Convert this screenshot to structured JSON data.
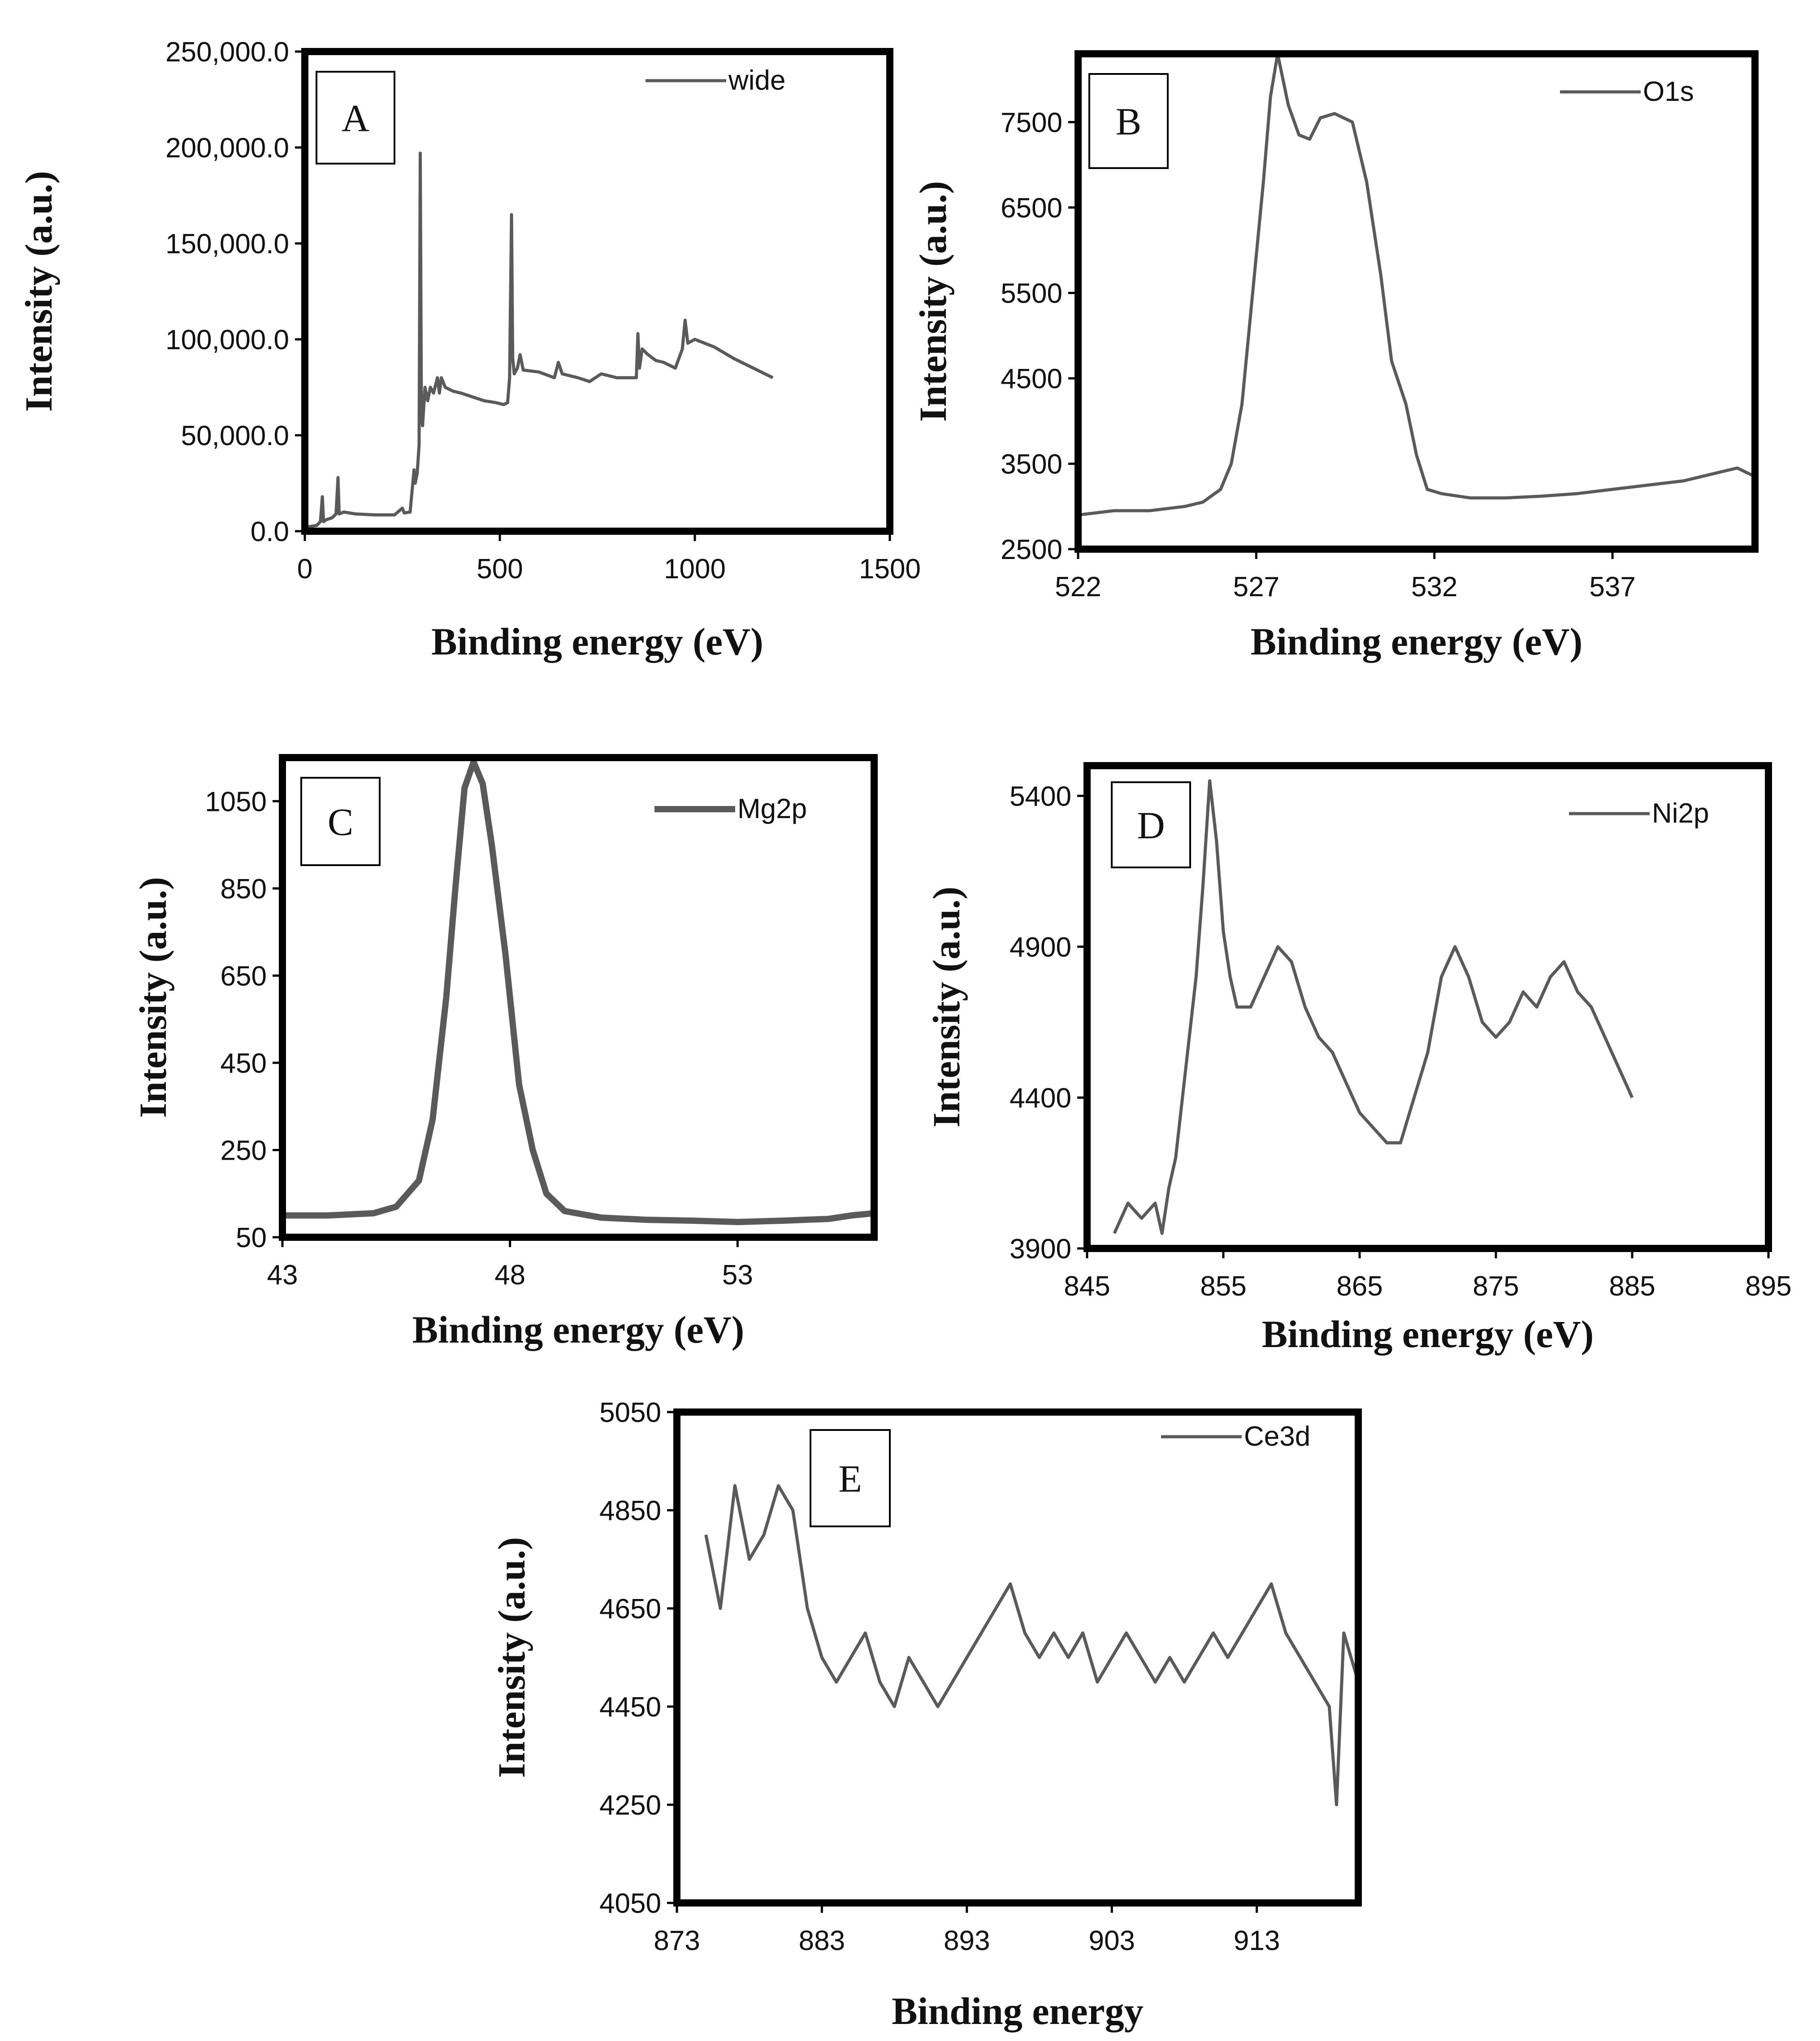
{
  "charts": [
    {
      "type": "line",
      "panel_label": "A",
      "legend": "wide",
      "xlabel": "Binding energy (eV)",
      "ylabel": "Intensity (a.u.)",
      "xlim": [
        0,
        1500
      ],
      "ylim": [
        0,
        250000
      ],
      "x_ticks": [
        "0",
        "500",
        "1000",
        "1500"
      ],
      "y_ticks": [
        "0.0",
        "50,000.0",
        "100,000.0",
        "150,000.0",
        "200,000.0",
        "250,000.0"
      ],
      "series": [
        {
          "name": "wide",
          "points": [
            [
              0,
              2000
            ],
            [
              15,
              2500
            ],
            [
              30,
              3000
            ],
            [
              40,
              5000
            ],
            [
              45,
              18000
            ],
            [
              48,
              5000
            ],
            [
              55,
              6000
            ],
            [
              70,
              7000
            ],
            [
              80,
              9000
            ],
            [
              85,
              28000
            ],
            [
              88,
              9000
            ],
            [
              100,
              10000
            ],
            [
              130,
              9000
            ],
            [
              180,
              8500
            ],
            [
              230,
              8500
            ],
            [
              250,
              12000
            ],
            [
              255,
              9500
            ],
            [
              270,
              10000
            ],
            [
              280,
              32000
            ],
            [
              283,
              25000
            ],
            [
              288,
              30000
            ],
            [
              293,
              45000
            ],
            [
              296,
              197000
            ],
            [
              299,
              60000
            ],
            [
              302,
              55000
            ],
            [
              308,
              75000
            ],
            [
              315,
              68000
            ],
            [
              322,
              75000
            ],
            [
              330,
              72000
            ],
            [
              340,
              80000
            ],
            [
              345,
              72000
            ],
            [
              350,
              80000
            ],
            [
              360,
              75000
            ],
            [
              380,
              73000
            ],
            [
              400,
              72000
            ],
            [
              430,
              70000
            ],
            [
              460,
              68000
            ],
            [
              490,
              67000
            ],
            [
              510,
              66000
            ],
            [
              520,
              67000
            ],
            [
              525,
              80000
            ],
            [
              530,
              165000
            ],
            [
              533,
              90000
            ],
            [
              537,
              82000
            ],
            [
              545,
              85000
            ],
            [
              552,
              92000
            ],
            [
              560,
              84000
            ],
            [
              600,
              83000
            ],
            [
              640,
              80000
            ],
            [
              650,
              88000
            ],
            [
              660,
              82000
            ],
            [
              700,
              80000
            ],
            [
              730,
              78000
            ],
            [
              760,
              82000
            ],
            [
              800,
              80000
            ],
            [
              840,
              80000
            ],
            [
              850,
              80000
            ],
            [
              854,
              103000
            ],
            [
              858,
              85000
            ],
            [
              865,
              95000
            ],
            [
              880,
              92000
            ],
            [
              900,
              89000
            ],
            [
              920,
              88000
            ],
            [
              950,
              85000
            ],
            [
              968,
              95000
            ],
            [
              975,
              110000
            ],
            [
              982,
              98000
            ],
            [
              1000,
              100000
            ],
            [
              1050,
              96000
            ],
            [
              1100,
              90000
            ],
            [
              1150,
              85000
            ],
            [
              1200,
              80000
            ]
          ]
        }
      ]
    },
    {
      "type": "line",
      "panel_label": "B",
      "legend": "O1s",
      "xlabel": "Binding energy (eV)",
      "ylabel": "Intensity (a.u.)",
      "xlim": [
        522,
        541
      ],
      "ylim": [
        2500,
        8300
      ],
      "x_ticks": [
        "522",
        "527",
        "532",
        "537"
      ],
      "y_ticks": [
        "2500",
        "3500",
        "4500",
        "5500",
        "6500",
        "7500"
      ],
      "series": [
        {
          "name": "O1s",
          "points": [
            [
              522,
              2900
            ],
            [
              523,
              2950
            ],
            [
              524,
              2950
            ],
            [
              525,
              3000
            ],
            [
              525.5,
              3050
            ],
            [
              526,
              3200
            ],
            [
              526.3,
              3500
            ],
            [
              526.6,
              4200
            ],
            [
              526.9,
              5500
            ],
            [
              527.2,
              6800
            ],
            [
              527.4,
              7800
            ],
            [
              527.6,
              8300
            ],
            [
              527.9,
              7700
            ],
            [
              528.2,
              7350
            ],
            [
              528.5,
              7300
            ],
            [
              528.8,
              7550
            ],
            [
              529.2,
              7600
            ],
            [
              529.7,
              7500
            ],
            [
              530.1,
              6800
            ],
            [
              530.5,
              5700
            ],
            [
              530.8,
              4700
            ],
            [
              531.2,
              4200
            ],
            [
              531.5,
              3600
            ],
            [
              531.8,
              3200
            ],
            [
              532.2,
              3150
            ],
            [
              533,
              3100
            ],
            [
              534,
              3100
            ],
            [
              535,
              3120
            ],
            [
              536,
              3150
            ],
            [
              537,
              3200
            ],
            [
              538,
              3250
            ],
            [
              539,
              3300
            ],
            [
              540,
              3400
            ],
            [
              540.5,
              3450
            ],
            [
              541,
              3350
            ]
          ]
        }
      ]
    },
    {
      "type": "line",
      "panel_label": "C",
      "legend": "Mg2p",
      "xlabel": "Binding energy (eV)",
      "ylabel": "Intensity (a.u.)",
      "xlim": [
        43,
        56
      ],
      "ylim": [
        50,
        1150
      ],
      "x_ticks": [
        "43",
        "48",
        "53"
      ],
      "y_ticks": [
        "50",
        "250",
        "450",
        "650",
        "850",
        "1050"
      ],
      "series": [
        {
          "name": "Mg2p",
          "points": [
            [
              43,
              100
            ],
            [
              44,
              100
            ],
            [
              45,
              105
            ],
            [
              45.5,
              120
            ],
            [
              46,
              180
            ],
            [
              46.3,
              320
            ],
            [
              46.6,
              600
            ],
            [
              46.8,
              850
            ],
            [
              47,
              1080
            ],
            [
              47.2,
              1140
            ],
            [
              47.4,
              1090
            ],
            [
              47.6,
              950
            ],
            [
              47.9,
              700
            ],
            [
              48.2,
              400
            ],
            [
              48.5,
              250
            ],
            [
              48.8,
              150
            ],
            [
              49.2,
              110
            ],
            [
              50,
              95
            ],
            [
              51,
              90
            ],
            [
              52,
              88
            ],
            [
              53,
              85
            ],
            [
              54,
              88
            ],
            [
              55,
              92
            ],
            [
              55.5,
              100
            ],
            [
              56,
              105
            ]
          ]
        }
      ]
    },
    {
      "type": "line",
      "panel_label": "D",
      "legend": "Ni2p",
      "xlabel": "Binding energy (eV)",
      "ylabel": "Intensity (a.u.)",
      "xlim": [
        845,
        895
      ],
      "ylim": [
        3900,
        5500
      ],
      "x_ticks": [
        "845",
        "855",
        "865",
        "875",
        "885",
        "895"
      ],
      "y_ticks": [
        "3900",
        "4400",
        "4900",
        "5400"
      ],
      "series": [
        {
          "name": "Ni2p",
          "points": [
            [
              847,
              3950
            ],
            [
              848,
              4050
            ],
            [
              849,
              4000
            ],
            [
              850,
              4050
            ],
            [
              850.5,
              3950
            ],
            [
              851,
              4100
            ],
            [
              851.5,
              4200
            ],
            [
              852,
              4400
            ],
            [
              852.5,
              4600
            ],
            [
              853,
              4800
            ],
            [
              853.5,
              5100
            ],
            [
              854,
              5450
            ],
            [
              854.5,
              5250
            ],
            [
              855,
              4950
            ],
            [
              855.5,
              4800
            ],
            [
              856,
              4700
            ],
            [
              857,
              4700
            ],
            [
              858,
              4800
            ],
            [
              859,
              4900
            ],
            [
              860,
              4850
            ],
            [
              861,
              4700
            ],
            [
              862,
              4600
            ],
            [
              863,
              4550
            ],
            [
              864,
              4450
            ],
            [
              865,
              4350
            ],
            [
              866,
              4300
            ],
            [
              867,
              4250
            ],
            [
              868,
              4250
            ],
            [
              869,
              4400
            ],
            [
              870,
              4550
            ],
            [
              871,
              4800
            ],
            [
              872,
              4900
            ],
            [
              873,
              4800
            ],
            [
              874,
              4650
            ],
            [
              875,
              4600
            ],
            [
              876,
              4650
            ],
            [
              877,
              4750
            ],
            [
              878,
              4700
            ],
            [
              879,
              4800
            ],
            [
              880,
              4850
            ],
            [
              881,
              4750
            ],
            [
              882,
              4700
            ],
            [
              883,
              4600
            ],
            [
              884,
              4500
            ],
            [
              885,
              4400
            ]
          ]
        }
      ]
    },
    {
      "type": "line",
      "panel_label": "E",
      "legend": "Ce3d",
      "xlabel": "Binding      energy",
      "ylabel": "Intensity (a.u.)",
      "xlim": [
        873,
        920
      ],
      "ylim": [
        4050,
        5050
      ],
      "x_ticks": [
        "873",
        "883",
        "893",
        "903",
        "913"
      ],
      "y_ticks": [
        "4050",
        "4250",
        "4450",
        "4650",
        "4850",
        "5050"
      ],
      "series": [
        {
          "name": "Ce3d",
          "points": [
            [
              875,
              4800
            ],
            [
              876,
              4650
            ],
            [
              877,
              4900
            ],
            [
              878,
              4750
            ],
            [
              879,
              4800
            ],
            [
              880,
              4900
            ],
            [
              881,
              4850
            ],
            [
              882,
              4650
            ],
            [
              883,
              4550
            ],
            [
              884,
              4500
            ],
            [
              885,
              4550
            ],
            [
              886,
              4600
            ],
            [
              887,
              4500
            ],
            [
              888,
              4450
            ],
            [
              889,
              4550
            ],
            [
              890,
              4500
            ],
            [
              891,
              4450
            ],
            [
              892,
              4500
            ],
            [
              893,
              4550
            ],
            [
              894,
              4600
            ],
            [
              895,
              4650
            ],
            [
              896,
              4700
            ],
            [
              897,
              4600
            ],
            [
              898,
              4550
            ],
            [
              899,
              4600
            ],
            [
              900,
              4550
            ],
            [
              901,
              4600
            ],
            [
              902,
              4500
            ],
            [
              903,
              4550
            ],
            [
              904,
              4600
            ],
            [
              905,
              4550
            ],
            [
              906,
              4500
            ],
            [
              907,
              4550
            ],
            [
              908,
              4500
            ],
            [
              909,
              4550
            ],
            [
              910,
              4600
            ],
            [
              911,
              4550
            ],
            [
              912,
              4600
            ],
            [
              913,
              4650
            ],
            [
              914,
              4700
            ],
            [
              915,
              4600
            ],
            [
              916,
              4550
            ],
            [
              917,
              4500
            ],
            [
              918,
              4450
            ],
            [
              918.5,
              4250
            ],
            [
              919,
              4600
            ],
            [
              920,
              4500
            ]
          ]
        }
      ]
    }
  ]
}
